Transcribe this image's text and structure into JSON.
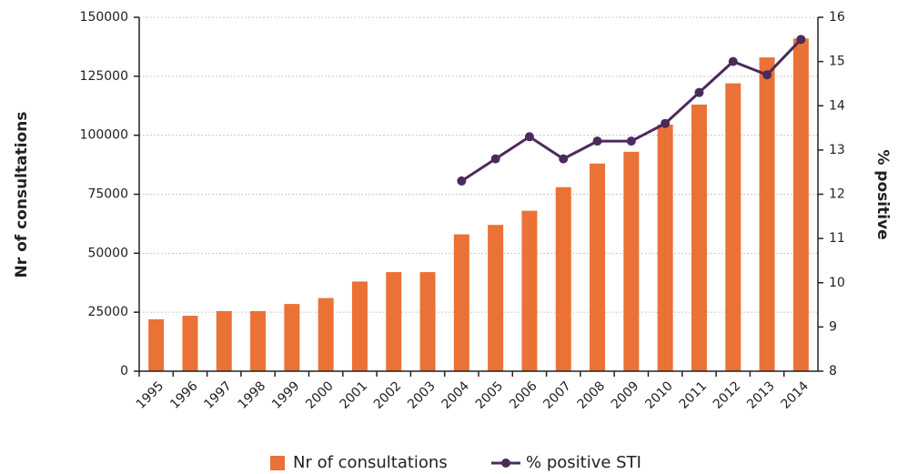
{
  "chart_data": {
    "type": "bar",
    "categories": [
      "1995",
      "1996",
      "1997",
      "1998",
      "1999",
      "2000",
      "2001",
      "2002",
      "2003",
      "2004",
      "2005",
      "2006",
      "2007",
      "2008",
      "2009",
      "2010",
      "2011",
      "2012",
      "2013",
      "2014"
    ],
    "series": [
      {
        "name": "Nr of consultations",
        "color": "#ea7236",
        "values": [
          22000,
          23500,
          25500,
          25500,
          28500,
          31000,
          38000,
          42000,
          42000,
          58000,
          62000,
          68000,
          78000,
          88000,
          93000,
          104500,
          113000,
          122000,
          133000,
          141000
        ]
      },
      {
        "name": "% positive STI",
        "color": "#4b2a5c",
        "axis": "y2",
        "type": "line",
        "values": [
          null,
          null,
          null,
          null,
          null,
          null,
          null,
          null,
          null,
          12.3,
          12.8,
          13.3,
          12.8,
          13.2,
          13.2,
          13.6,
          14.3,
          15.0,
          14.7,
          15.5
        ]
      }
    ],
    "ylabel": "Nr of consultations",
    "y2label": "% positive",
    "ylim": [
      0,
      150000
    ],
    "yticks": [
      0,
      25000,
      50000,
      75000,
      100000,
      125000,
      150000
    ],
    "y2lim": [
      8,
      16
    ],
    "y2ticks": [
      8,
      9,
      10,
      11,
      12,
      13,
      14,
      15,
      16
    ],
    "grid": true,
    "legend": "bottom"
  }
}
